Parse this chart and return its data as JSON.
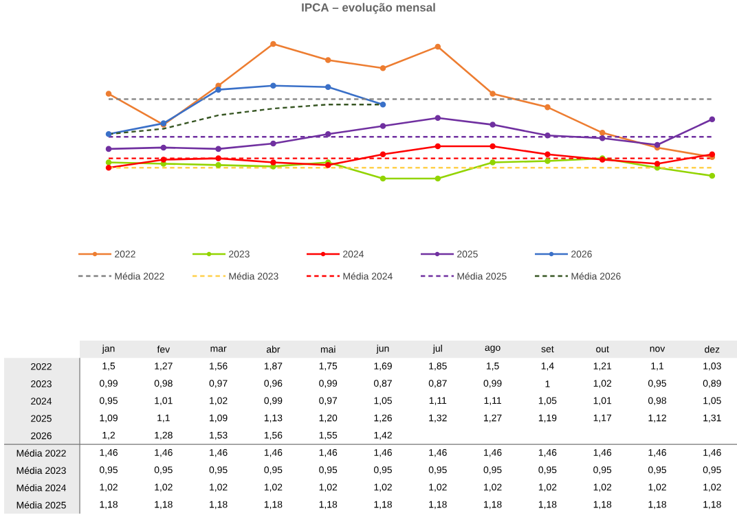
{
  "chart_data": {
    "type": "line",
    "title": "IPCA – evolução mensal",
    "categories": [
      "jan",
      "fev",
      "mar",
      "abr",
      "mai",
      "jun",
      "jul",
      "ago",
      "set",
      "out",
      "nov",
      "dez"
    ],
    "legend": "bottom",
    "series": [
      {
        "name": "2022",
        "color": "#ed7d31",
        "marker": "circle",
        "line_style": "solid",
        "values": [
          1.5,
          1.27,
          1.56,
          1.87,
          1.75,
          1.69,
          1.85,
          1.5,
          1.4,
          1.21,
          1.1,
          1.03
        ],
        "value_labels": [
          "1,5",
          "1,27",
          "1,56",
          "1,87",
          "1,75",
          "1,69",
          "1,85",
          "1,5",
          "1,4",
          "1,21",
          "1,1",
          "1,03"
        ]
      },
      {
        "name": "2023",
        "color": "#92d400",
        "marker": "circle",
        "line_style": "solid",
        "values": [
          0.99,
          0.98,
          0.97,
          0.96,
          0.99,
          0.87,
          0.87,
          0.99,
          1,
          1.02,
          0.95,
          0.89
        ],
        "value_labels": [
          "0,99",
          "0,98",
          "0,97",
          "0,96",
          "0,99",
          "0,87",
          "0,87",
          "0,99",
          "1",
          "1,02",
          "0,95",
          "0,89"
        ]
      },
      {
        "name": "2024",
        "color": "#ff0000",
        "marker": "circle",
        "line_style": "solid",
        "values": [
          0.95,
          1.01,
          1.02,
          0.99,
          0.97,
          1.05,
          1.11,
          1.11,
          1.05,
          1.01,
          0.98,
          1.05
        ],
        "value_labels": [
          "0,95",
          "1,01",
          "1,02",
          "0,99",
          "0,97",
          "1,05",
          "1,11",
          "1,11",
          "1,05",
          "1,01",
          "0,98",
          "1,05"
        ]
      },
      {
        "name": "2025",
        "color": "#7030a0",
        "marker": "circle",
        "line_style": "solid",
        "values": [
          1.09,
          1.1,
          1.09,
          1.13,
          1.2,
          1.26,
          1.32,
          1.27,
          1.19,
          1.17,
          1.12,
          1.31
        ],
        "value_labels": [
          "1,09",
          "1,1",
          "1,09",
          "1,13",
          "1,20",
          "1,26",
          "1,32",
          "1,27",
          "1,19",
          "1,17",
          "1,12",
          "1,31"
        ]
      },
      {
        "name": "2026",
        "color": "#3a70c8",
        "marker": "circle",
        "line_style": "solid",
        "values": [
          1.2,
          1.28,
          1.53,
          1.56,
          1.55,
          1.42,
          null,
          null,
          null,
          null,
          null,
          null
        ],
        "value_labels": [
          "1,2",
          "1,28",
          "1,53",
          "1,56",
          "1,55",
          "1,42",
          null,
          null,
          null,
          null,
          null,
          null
        ]
      },
      {
        "name": "Média 2022",
        "color": "#808080",
        "marker": "none",
        "line_style": "dashed",
        "values": [
          1.46,
          1.46,
          1.46,
          1.46,
          1.46,
          1.46,
          1.46,
          1.46,
          1.46,
          1.46,
          1.46,
          1.46
        ],
        "value_labels": [
          "1,46",
          "1,46",
          "1,46",
          "1,46",
          "1,46",
          "1,46",
          "1,46",
          "1,46",
          "1,46",
          "1,46",
          "1,46",
          "1,46"
        ]
      },
      {
        "name": "Média 2023",
        "color": "#ffd04a",
        "marker": "none",
        "line_style": "dashed",
        "values": [
          0.95,
          0.95,
          0.95,
          0.95,
          0.95,
          0.95,
          0.95,
          0.95,
          0.95,
          0.95,
          0.95,
          0.95
        ],
        "value_labels": [
          "0,95",
          "0,95",
          "0,95",
          "0,95",
          "0,95",
          "0,95",
          "0,95",
          "0,95",
          "0,95",
          "0,95",
          "0,95",
          "0,95"
        ]
      },
      {
        "name": "Média 2024",
        "color": "#ff0000",
        "marker": "none",
        "line_style": "dashed",
        "values": [
          1.02,
          1.02,
          1.02,
          1.02,
          1.02,
          1.02,
          1.02,
          1.02,
          1.02,
          1.02,
          1.02,
          1.02
        ],
        "value_labels": [
          "1,02",
          "1,02",
          "1,02",
          "1,02",
          "1,02",
          "1,02",
          "1,02",
          "1,02",
          "1,02",
          "1,02",
          "1,02",
          "1,02"
        ]
      },
      {
        "name": "Média 2025",
        "color": "#7030a0",
        "marker": "none",
        "line_style": "dashed",
        "values": [
          1.18,
          1.18,
          1.18,
          1.18,
          1.18,
          1.18,
          1.18,
          1.18,
          1.18,
          1.18,
          1.18,
          1.18
        ],
        "value_labels": [
          "1,18",
          "1,18",
          "1,18",
          "1,18",
          "1,18",
          "1,18",
          "1,18",
          "1,18",
          "1,18",
          "1,18",
          "1,18",
          "1,18"
        ]
      },
      {
        "name": "Média 2026",
        "color": "#375623",
        "marker": "none",
        "line_style": "dashed",
        "values": [
          1.2,
          1.24,
          1.34,
          1.39,
          1.42,
          1.42,
          null,
          null,
          null,
          null,
          null,
          null
        ],
        "value_labels": [
          null,
          null,
          null,
          null,
          null,
          null,
          null,
          null,
          null,
          null,
          null,
          null
        ]
      }
    ]
  }
}
